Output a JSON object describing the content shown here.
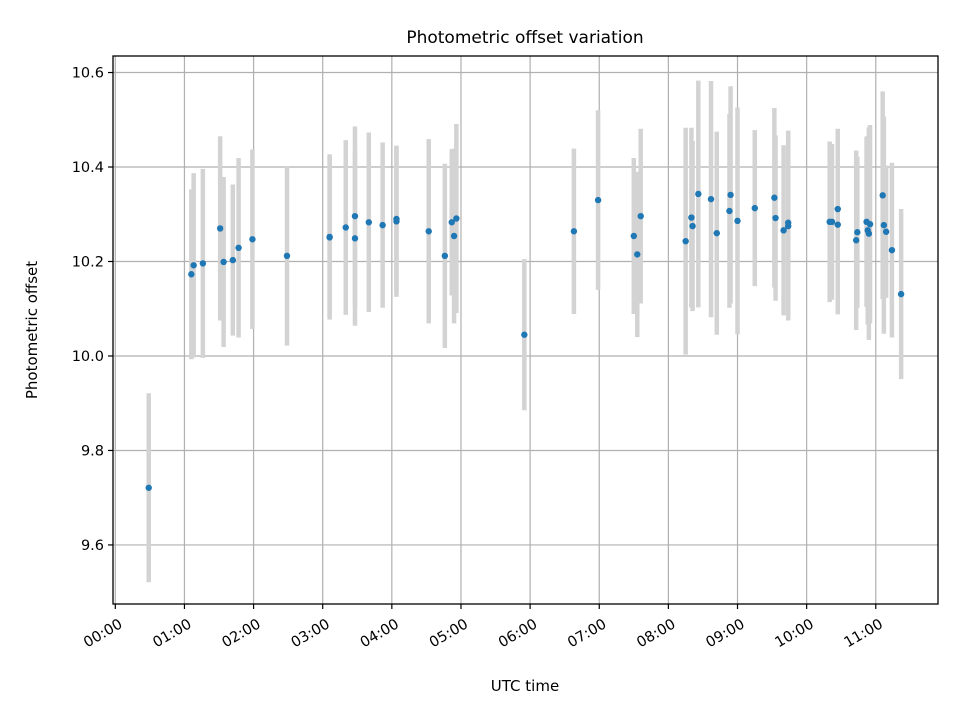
{
  "chart_data": {
    "type": "scatter",
    "title": "Photometric offset variation",
    "xlabel": "UTC time",
    "ylabel": "Photometric offset",
    "x_unit": "UTC hh:mm",
    "xlim": [
      "23:58",
      "11:54"
    ],
    "ylim": [
      9.475,
      10.635
    ],
    "grid": true,
    "legend": "none",
    "x_ticks": [
      "00:00",
      "01:00",
      "02:00",
      "03:00",
      "04:00",
      "05:00",
      "06:00",
      "07:00",
      "08:00",
      "09:00",
      "10:00",
      "11:00"
    ],
    "y_ticks": [
      9.6,
      9.8,
      10.0,
      10.2,
      10.4,
      10.6
    ],
    "y_tick_labels": [
      "9.6",
      "9.8",
      "10.0",
      "10.2",
      "10.4",
      "10.6"
    ],
    "colors": {
      "points": "#1f77b4",
      "error_bars": "#d3d3d3",
      "grid": "#b0b0b0"
    },
    "series": [
      {
        "x": [
          "00:29",
          "01:06",
          "01:08",
          "01:16",
          "01:31",
          "01:34",
          "01:42",
          "01:47",
          "01:59",
          "02:29",
          "03:06",
          "03:06",
          "03:20",
          "03:28",
          "03:28",
          "03:40",
          "03:52",
          "04:04",
          "04:04",
          "04:32",
          "04:46",
          "04:52",
          "04:54",
          "04:56",
          "05:55",
          "06:38",
          "06:59",
          "07:30",
          "07:33",
          "07:36",
          "08:15",
          "08:20",
          "08:21",
          "08:26",
          "08:37",
          "08:42",
          "08:53",
          "08:54",
          "09:00",
          "09:15",
          "09:32",
          "09:33",
          "09:40",
          "09:44",
          "09:44",
          "10:20",
          "10:22",
          "10:27",
          "10:27",
          "10:43",
          "10:44",
          "10:52",
          "10:53",
          "10:54",
          "10:55",
          "11:06",
          "11:07",
          "11:09",
          "11:14",
          "11:22"
        ],
        "y": [
          9.721,
          10.173,
          10.192,
          10.196,
          10.27,
          10.199,
          10.203,
          10.229,
          10.247,
          10.212,
          10.252,
          10.251,
          10.272,
          10.296,
          10.249,
          10.283,
          10.277,
          10.285,
          10.29,
          10.264,
          10.212,
          10.283,
          10.254,
          10.291,
          10.045,
          10.264,
          10.33,
          10.254,
          10.215,
          10.296,
          10.243,
          10.293,
          10.275,
          10.343,
          10.332,
          10.26,
          10.307,
          10.341,
          10.286,
          10.313,
          10.335,
          10.292,
          10.266,
          10.275,
          10.282,
          10.284,
          10.284,
          10.278,
          10.311,
          10.245,
          10.262,
          10.284,
          10.266,
          10.259,
          10.279,
          10.34,
          10.277,
          10.263,
          10.224,
          10.131
        ],
        "yerr": [
          0.2,
          0.18,
          0.195,
          0.2,
          0.195,
          0.18,
          0.16,
          0.19,
          0.19,
          0.19,
          0.175,
          0.17,
          0.185,
          0.19,
          0.185,
          0.19,
          0.175,
          0.16,
          0.155,
          0.195,
          0.195,
          0.155,
          0.185,
          0.2,
          0.16,
          0.175,
          0.19,
          0.165,
          0.175,
          0.185,
          0.24,
          0.19,
          0.18,
          0.24,
          0.25,
          0.215,
          0.205,
          0.23,
          0.24,
          0.165,
          0.19,
          0.175,
          0.18,
          0.2,
          0.195,
          0.17,
          0.165,
          0.19,
          0.17,
          0.19,
          0.16,
          0.18,
          0.2,
          0.225,
          0.21,
          0.22,
          0.23,
          0.14,
          0.185,
          0.18
        ]
      }
    ]
  }
}
